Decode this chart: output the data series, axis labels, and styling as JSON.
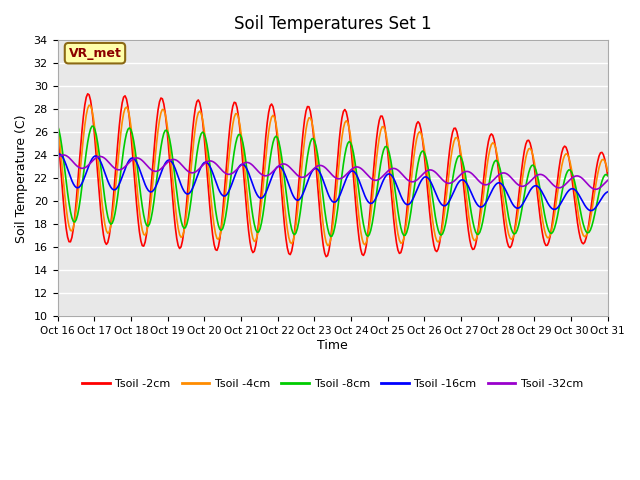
{
  "title": "Soil Temperatures Set 1",
  "xlabel": "Time",
  "ylabel": "Soil Temperature (C)",
  "ylim": [
    10,
    34
  ],
  "yticks": [
    10,
    12,
    14,
    16,
    18,
    20,
    22,
    24,
    26,
    28,
    30,
    32,
    34
  ],
  "xtick_labels": [
    "Oct 16",
    "Oct 17",
    "Oct 18",
    "Oct 19",
    "Oct 20",
    "Oct 21",
    "Oct 22",
    "Oct 23",
    "Oct 24",
    "Oct 25",
    "Oct 26",
    "Oct 27",
    "Oct 28",
    "Oct 29",
    "Oct 30",
    "Oct 31"
  ],
  "series": [
    {
      "label": "Tsoil -2cm",
      "color": "#ff0000"
    },
    {
      "label": "Tsoil -4cm",
      "color": "#ff8c00"
    },
    {
      "label": "Tsoil -8cm",
      "color": "#00cc00"
    },
    {
      "label": "Tsoil -16cm",
      "color": "#0000ff"
    },
    {
      "label": "Tsoil -32cm",
      "color": "#9900cc"
    }
  ],
  "annotation_text": "VR_met",
  "background_color": "#e8e8e8",
  "fig_background": "#ffffff",
  "grid_color": "#ffffff"
}
